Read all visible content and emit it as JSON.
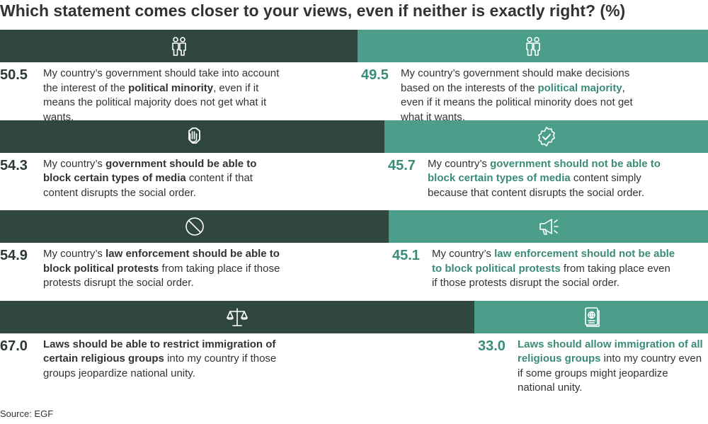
{
  "title": "Which statement comes closer to your views, even if neither is exactly right? (%)",
  "source": "Source: EGF",
  "colors": {
    "left": "#30473f",
    "right": "#4a9e8a",
    "left_value": "#2b3a34",
    "right_value": "#3b8b79"
  },
  "chart_data": {
    "type": "bar",
    "orientation": "horizontal-stacked",
    "title": "Which statement comes closer to your views, even if neither is exactly right? (%)",
    "xlim": [
      0,
      100
    ],
    "rows": [
      {
        "left": {
          "value": 50.5,
          "icon": "people-icon",
          "text": [
            [
              "My country’s government should take into account the interest of the ",
              false
            ],
            [
              "political minority",
              true
            ],
            [
              ", even if it means the political majority does not get what it wants.",
              false
            ]
          ]
        },
        "right": {
          "value": 49.5,
          "icon": "people-icon",
          "text": [
            [
              "My country’s government should make decisions based on the interests of the ",
              false
            ],
            [
              "political majority",
              true
            ],
            [
              ", even if it means the political minority does not get what it wants.",
              false
            ]
          ]
        }
      },
      {
        "left": {
          "value": 54.3,
          "icon": "stop-hand-icon",
          "text": [
            [
              "My country’s ",
              false
            ],
            [
              "government should be able to block certain types of media",
              true
            ],
            [
              " content if that content disrupts the social order.",
              false
            ]
          ]
        },
        "right": {
          "value": 45.7,
          "icon": "check-circle-icon",
          "text": [
            [
              "My country’s ",
              false
            ],
            [
              "government should not be able to block certain types of media",
              true
            ],
            [
              " content simply because that content disrupts the social order.",
              false
            ]
          ]
        }
      },
      {
        "left": {
          "value": 54.9,
          "icon": "prohibited-icon",
          "text": [
            [
              "My country’s ",
              false
            ],
            [
              "law enforcement should be able to block political protests",
              true
            ],
            [
              " from taking place if those protests disrupt the social order.",
              false
            ]
          ]
        },
        "right": {
          "value": 45.1,
          "icon": "megaphone-icon",
          "text": [
            [
              "My country’s ",
              false
            ],
            [
              "law enforcement should not be able to block political protests",
              true
            ],
            [
              " from taking place even if those protests disrupt the social order.",
              false
            ]
          ]
        }
      },
      {
        "left": {
          "value": 67.0,
          "icon": "scales-icon",
          "text": [
            [
              "Laws should be able to restrict immigration of certain religious groups",
              true
            ],
            [
              " into my country if those groups jeopardize national unity.",
              false
            ]
          ]
        },
        "right": {
          "value": 33.0,
          "icon": "passport-icon",
          "text": [
            [
              "Laws should allow immigration of all religious groups",
              true
            ],
            [
              " into my country even if some groups might jeopardize national unity.",
              false
            ]
          ]
        }
      }
    ]
  }
}
